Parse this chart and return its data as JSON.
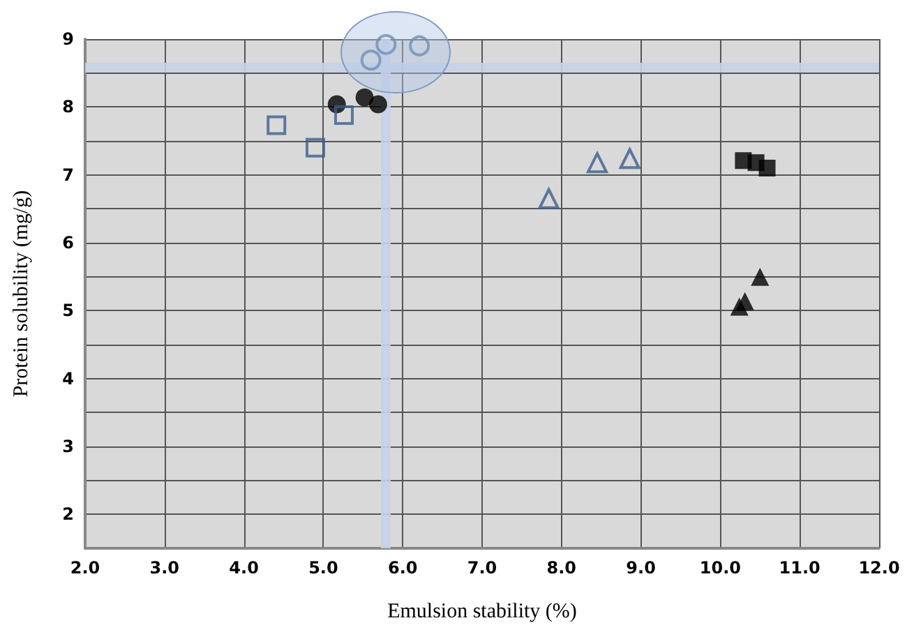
{
  "chart_data": {
    "type": "scatter",
    "xlabel": "Emulsion stability (%)",
    "ylabel": "Protein solubility (mg/g)",
    "xlim": [
      2,
      12
    ],
    "xticks": [
      {
        "value": 2,
        "label": "2.0"
      },
      {
        "value": 3,
        "label": "3.0"
      },
      {
        "value": 4,
        "label": "4.0"
      },
      {
        "value": 5,
        "label": "5.0"
      },
      {
        "value": 6,
        "label": "6.0"
      },
      {
        "value": 7,
        "label": "7.0"
      },
      {
        "value": 8,
        "label": "8.0"
      },
      {
        "value": 9,
        "label": "9.0"
      },
      {
        "value": 10,
        "label": "10.0"
      },
      {
        "value": 11,
        "label": "11.0"
      },
      {
        "value": 12,
        "label": "12.0"
      }
    ],
    "ylim": [
      1.5,
      9
    ],
    "yticks": [
      2,
      {
        "value": 2.5,
        "label": null
      },
      3,
      {
        "value": 3.5,
        "label": null
      },
      4,
      {
        "value": 4.5,
        "label": null
      },
      5,
      {
        "value": 5.5,
        "label": null
      },
      6,
      {
        "value": 6.5,
        "label": null
      },
      7,
      {
        "value": 7.5,
        "label": null
      },
      8,
      {
        "value": 8.5,
        "label": null
      },
      9
    ],
    "grid": true,
    "ref_lines": [
      {
        "axis": "x",
        "value": 5.78,
        "color": "#c5d3e6"
      },
      {
        "axis": "y",
        "value": 8.59,
        "color": "#c5d3e6"
      }
    ],
    "series": [
      {
        "color": "#3b5f8c",
        "marker": "circle",
        "x": [
          5.6,
          5.79,
          6.21
        ],
        "values": [
          8.69,
          8.92,
          8.9
        ]
      },
      {
        "color": "#000000",
        "marker": "circle",
        "x": [
          5.17,
          5.52,
          5.69
        ],
        "values": [
          8.04,
          8.14,
          8.04
        ]
      },
      {
        "color": "#3b5f8c",
        "marker": "square",
        "x": [
          4.41,
          4.9,
          5.26
        ],
        "values": [
          7.73,
          7.4,
          7.88
        ]
      },
      {
        "color": "#3b5f8c",
        "marker": "triangle",
        "x": [
          7.84,
          8.45,
          8.86
        ],
        "values": [
          6.65,
          7.18,
          7.24
        ]
      },
      {
        "color": "#000000",
        "marker": "square",
        "x": [
          10.29,
          10.45,
          10.59
        ],
        "values": [
          7.21,
          7.18,
          7.1
        ]
      },
      {
        "color": "#000000",
        "marker": "triangle",
        "x": [
          10.5,
          10.31,
          10.24
        ],
        "values": [
          5.5,
          5.14,
          5.06
        ]
      }
    ]
  }
}
